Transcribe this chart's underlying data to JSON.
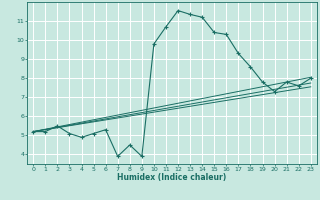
{
  "title": "",
  "xlabel": "Humidex (Indice chaleur)",
  "ylabel": "",
  "bg_color": "#c8e8e0",
  "grid_color": "#ffffff",
  "line_color": "#1a6e64",
  "marker_color": "#1a6e64",
  "xlim": [
    -0.5,
    23.5
  ],
  "ylim": [
    3.5,
    12.0
  ],
  "yticks": [
    4,
    5,
    6,
    7,
    8,
    9,
    10,
    11
  ],
  "xticks": [
    0,
    1,
    2,
    3,
    4,
    5,
    6,
    7,
    8,
    9,
    10,
    11,
    12,
    13,
    14,
    15,
    16,
    17,
    18,
    19,
    20,
    21,
    22,
    23
  ],
  "main_line": {
    "x": [
      0,
      1,
      2,
      3,
      4,
      5,
      6,
      7,
      8,
      9,
      10,
      11,
      12,
      13,
      14,
      15,
      16,
      17,
      18,
      19,
      20,
      21,
      22,
      23
    ],
    "y": [
      5.2,
      5.2,
      5.5,
      5.1,
      4.9,
      5.1,
      5.3,
      3.9,
      4.5,
      3.9,
      9.8,
      10.7,
      11.55,
      11.35,
      11.2,
      10.4,
      10.3,
      9.3,
      8.6,
      7.8,
      7.3,
      7.8,
      7.6,
      8.0
    ]
  },
  "trend_lines": [
    {
      "x": [
        0,
        23
      ],
      "y": [
        5.2,
        8.05
      ]
    },
    {
      "x": [
        0,
        23
      ],
      "y": [
        5.2,
        7.75
      ]
    },
    {
      "x": [
        0,
        23
      ],
      "y": [
        5.2,
        7.55
      ]
    }
  ]
}
